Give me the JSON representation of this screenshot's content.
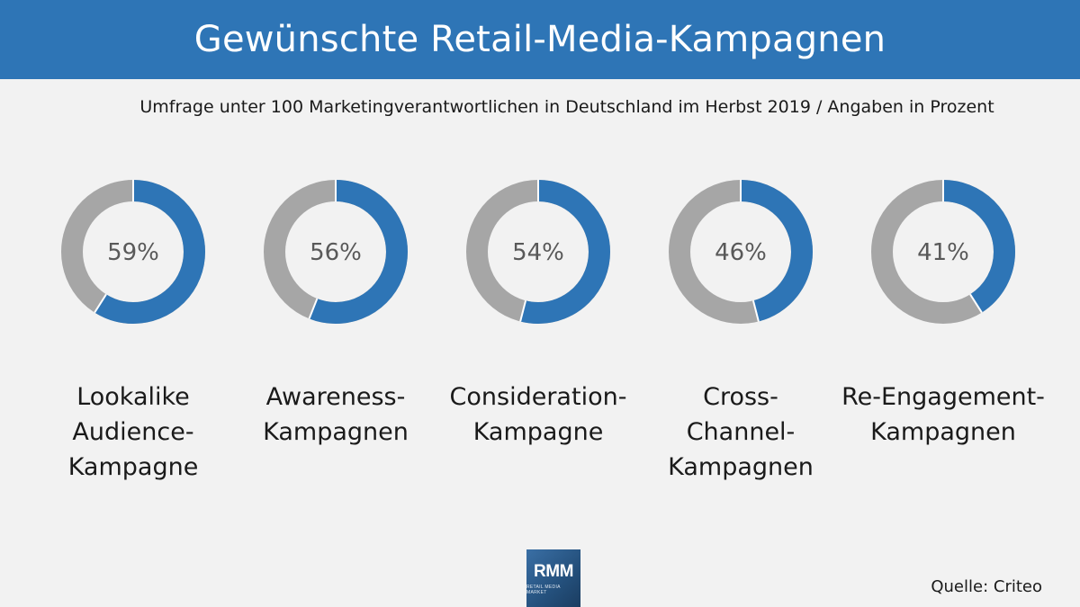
{
  "header": {
    "title": "Gewünschte Retail-Media-Kampagnen"
  },
  "subtitle": "Umfrage unter 100 Marketingverantwortlichen in Deutschland im Herbst 2019 / Angaben in Prozent",
  "source": "Quelle: Criteo",
  "logo": {
    "main": "RMM",
    "sub": "RETAIL MEDIA MARKET"
  },
  "colors": {
    "header": "#2e75b6",
    "value": "#2e75b6",
    "remainder": "#a6a6a6",
    "background": "#f2f2f2"
  },
  "chart_data": {
    "type": "pie",
    "style": "donut",
    "categories": [
      {
        "name": "Lookalike Audience-Kampagne",
        "value": 59,
        "display": "59%",
        "lines": [
          "Lookalike",
          "Audience-",
          "Kampagne"
        ]
      },
      {
        "name": "Awareness-Kampagnen",
        "value": 56,
        "display": "56%",
        "lines": [
          "Awareness-",
          "Kampagnen"
        ]
      },
      {
        "name": "Consideration-Kampagne",
        "value": 54,
        "display": "54%",
        "lines": [
          "Consideration-",
          "Kampagne"
        ]
      },
      {
        "name": "Cross-Channel-Kampagnen",
        "value": 46,
        "display": "46%",
        "lines": [
          "Cross-",
          "Channel-",
          "Kampagnen"
        ]
      },
      {
        "name": "Re-Engagement-Kampagnen",
        "value": 41,
        "display": "41%",
        "lines": [
          "Re-Engagement-",
          "Kampagnen"
        ]
      }
    ]
  }
}
